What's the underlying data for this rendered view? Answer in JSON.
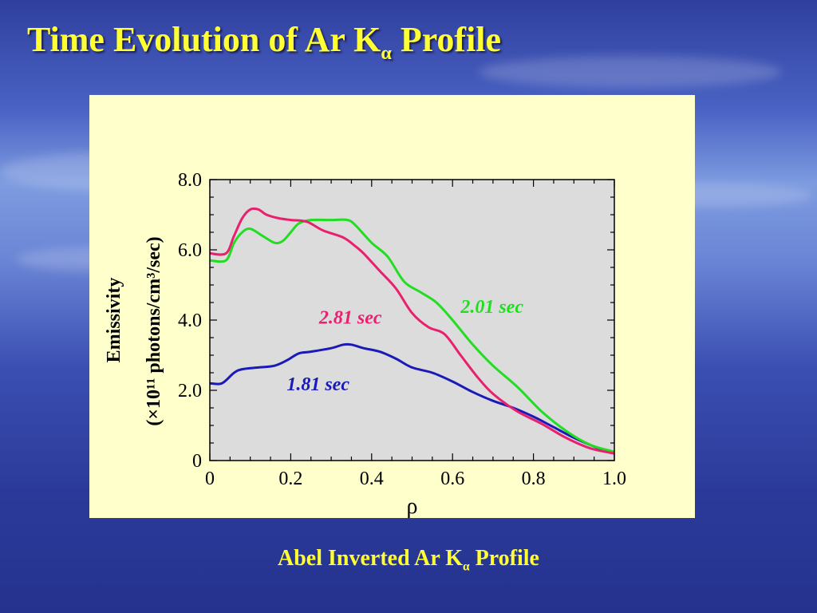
{
  "slide": {
    "title_main": "Time Evolution of Ar K",
    "title_sub": "α",
    "title_end": " Profile",
    "caption_main": "Abel Inverted Ar K",
    "caption_sub": "α",
    "caption_end": " Profile"
  },
  "colors": {
    "title": "#ffff33",
    "panel": "#ffffcc",
    "plot_bg": "#dcdcdc",
    "series_181": "#1a1ab8",
    "series_201": "#22dd22",
    "series_281": "#e8206e"
  },
  "chart_data": {
    "type": "line",
    "xlabel": "ρ",
    "ylabel_line1": "Emissivity",
    "ylabel_line2": "(×10¹¹ photons/cm³/sec)",
    "xlim": [
      0,
      1.0
    ],
    "ylim": [
      0,
      8.0
    ],
    "x_ticks": [
      "0",
      "0.2",
      "0.4",
      "0.6",
      "0.8",
      "1.0"
    ],
    "y_ticks": [
      "0",
      "2.0",
      "4.0",
      "6.0",
      "8.0"
    ],
    "grid": false,
    "series": [
      {
        "name": "1.81 sec",
        "color": "#1a1ab8",
        "x": [
          0,
          0.03,
          0.06,
          0.08,
          0.12,
          0.16,
          0.19,
          0.22,
          0.25,
          0.3,
          0.33,
          0.35,
          0.38,
          0.42,
          0.46,
          0.5,
          0.55,
          0.6,
          0.65,
          0.7,
          0.75,
          0.8,
          0.85,
          0.9,
          0.95,
          1.0
        ],
        "y": [
          2.2,
          2.2,
          2.5,
          2.6,
          2.65,
          2.7,
          2.85,
          3.05,
          3.1,
          3.2,
          3.3,
          3.3,
          3.2,
          3.1,
          2.9,
          2.65,
          2.5,
          2.25,
          1.95,
          1.7,
          1.5,
          1.25,
          0.95,
          0.65,
          0.4,
          0.2
        ]
      },
      {
        "name": "2.01 sec",
        "color": "#22dd22",
        "x": [
          0,
          0.04,
          0.06,
          0.08,
          0.1,
          0.13,
          0.16,
          0.18,
          0.2,
          0.22,
          0.25,
          0.3,
          0.34,
          0.36,
          0.4,
          0.44,
          0.48,
          0.52,
          0.56,
          0.6,
          0.65,
          0.7,
          0.76,
          0.82,
          0.88,
          0.94,
          1.0
        ],
        "y": [
          5.7,
          5.7,
          6.2,
          6.5,
          6.6,
          6.4,
          6.2,
          6.25,
          6.5,
          6.75,
          6.85,
          6.85,
          6.85,
          6.7,
          6.2,
          5.8,
          5.1,
          4.8,
          4.5,
          4.0,
          3.3,
          2.7,
          2.1,
          1.4,
          0.85,
          0.45,
          0.25
        ]
      },
      {
        "name": "2.81 sec",
        "color": "#e8206e",
        "x": [
          0,
          0.04,
          0.06,
          0.08,
          0.1,
          0.12,
          0.14,
          0.17,
          0.2,
          0.24,
          0.28,
          0.33,
          0.36,
          0.38,
          0.42,
          0.46,
          0.5,
          0.54,
          0.58,
          0.62,
          0.66,
          0.7,
          0.76,
          0.82,
          0.88,
          0.94,
          1.0
        ],
        "y": [
          5.9,
          5.9,
          6.4,
          6.9,
          7.15,
          7.15,
          7.0,
          6.9,
          6.85,
          6.8,
          6.55,
          6.35,
          6.1,
          5.9,
          5.4,
          4.9,
          4.2,
          3.8,
          3.6,
          3.0,
          2.4,
          1.9,
          1.4,
          1.05,
          0.65,
          0.35,
          0.2
        ]
      }
    ],
    "annotations": [
      {
        "text": "1.81 sec",
        "series": "1.81 sec",
        "x": 0.19,
        "y": 2.0
      },
      {
        "text": "2.01 sec",
        "series": "2.01 sec",
        "x": 0.62,
        "y": 4.2
      },
      {
        "text": "2.81 sec",
        "series": "2.81 sec",
        "x": 0.27,
        "y": 3.9
      }
    ]
  }
}
